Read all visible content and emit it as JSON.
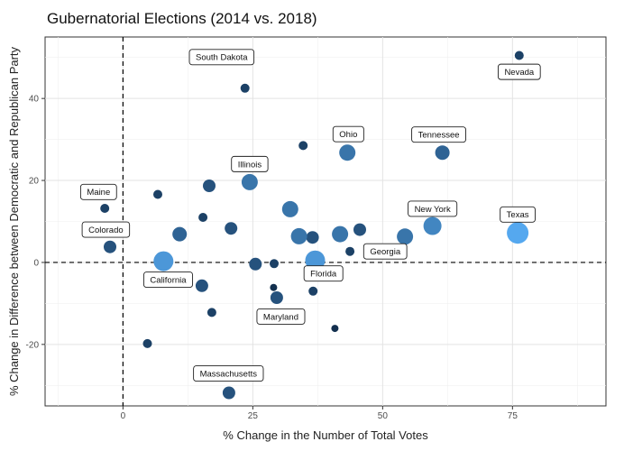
{
  "chart_data": {
    "type": "scatter",
    "title": "Gubernatorial Elections (2014 vs. 2018)",
    "xlabel": "% Change in the Number of Total Votes",
    "ylabel": "% Change in Difference between Democratic and Republican Party",
    "xlim": [
      -15,
      93
    ],
    "ylim": [
      -35,
      55
    ],
    "xticks": [
      0,
      25,
      50,
      75
    ],
    "yticks": [
      -20,
      0,
      20,
      40
    ],
    "grid": true,
    "reference_lines": {
      "x": 0,
      "y": 0,
      "style": "dashed"
    },
    "size_encoding": "larger, lighter points indicate larger states",
    "color_dark": "#13304f",
    "color_light": "#55a8ef",
    "points": [
      {
        "x": 76.3,
        "y": 50.5,
        "size": 1,
        "label": "Nevada"
      },
      {
        "x": 23.5,
        "y": 42.5,
        "size": 1,
        "label": "South Dakota"
      },
      {
        "x": 34.7,
        "y": 28.5,
        "size": 1,
        "label": null
      },
      {
        "x": 43.2,
        "y": 26.8,
        "size": 4,
        "label": "Ohio"
      },
      {
        "x": 61.5,
        "y": 26.8,
        "size": 3,
        "label": "Tennessee"
      },
      {
        "x": 24.4,
        "y": 19.6,
        "size": 4,
        "label": "Illinois"
      },
      {
        "x": -3.5,
        "y": 13.2,
        "size": 1,
        "label": "Maine"
      },
      {
        "x": 6.7,
        "y": 16.6,
        "size": 1,
        "label": null
      },
      {
        "x": 16.6,
        "y": 18.7,
        "size": 2,
        "label": null
      },
      {
        "x": 32.2,
        "y": 13.0,
        "size": 4,
        "label": null
      },
      {
        "x": 15.4,
        "y": 11.0,
        "size": 1,
        "label": null
      },
      {
        "x": 59.6,
        "y": 8.9,
        "size": 5,
        "label": "New York"
      },
      {
        "x": 76.0,
        "y": 7.2,
        "size": 7,
        "label": "Texas"
      },
      {
        "x": 10.9,
        "y": 6.9,
        "size": 3,
        "label": null
      },
      {
        "x": 20.8,
        "y": 8.3,
        "size": 2,
        "label": null
      },
      {
        "x": 33.9,
        "y": 6.4,
        "size": 4,
        "label": null
      },
      {
        "x": 36.5,
        "y": 6.1,
        "size": 2,
        "label": null
      },
      {
        "x": 41.8,
        "y": 6.9,
        "size": 4,
        "label": null
      },
      {
        "x": 45.6,
        "y": 8.0,
        "size": 2,
        "label": null
      },
      {
        "x": 54.3,
        "y": 6.3,
        "size": 4,
        "label": null
      },
      {
        "x": -2.5,
        "y": 3.8,
        "size": 2,
        "label": "Colorado"
      },
      {
        "x": 43.7,
        "y": 2.7,
        "size": 1,
        "label": "Georgia"
      },
      {
        "x": 7.8,
        "y": 0.3,
        "size": 6,
        "label": "California"
      },
      {
        "x": 37.0,
        "y": 0.5,
        "size": 6,
        "label": "Florida"
      },
      {
        "x": 25.5,
        "y": -0.4,
        "size": 2,
        "label": null
      },
      {
        "x": 29.1,
        "y": -0.3,
        "size": 1,
        "label": null
      },
      {
        "x": 15.2,
        "y": -5.7,
        "size": 2,
        "label": null
      },
      {
        "x": 29.0,
        "y": -6.1,
        "size": 0,
        "label": null
      },
      {
        "x": 29.6,
        "y": -8.6,
        "size": 2,
        "label": "Maryland"
      },
      {
        "x": 36.6,
        "y": -7.0,
        "size": 1,
        "label": null
      },
      {
        "x": 17.1,
        "y": -12.2,
        "size": 1,
        "label": null
      },
      {
        "x": 40.8,
        "y": -16.1,
        "size": 0,
        "label": null
      },
      {
        "x": 4.7,
        "y": -19.8,
        "size": 1,
        "label": null
      },
      {
        "x": 20.4,
        "y": -31.8,
        "size": 2,
        "label": "Massachusetts"
      }
    ],
    "label_offsets": {
      "Nevada": [
        0,
        -4
      ],
      "South Dakota": [
        -4.5,
        7.6
      ],
      "Ohio": [
        0.2,
        4.5
      ],
      "Tennessee": [
        -0.7,
        4.4
      ],
      "Illinois": [
        0,
        4.4
      ],
      "Maine": [
        -1.2,
        4.0
      ],
      "Colorado": [
        -0.8,
        4.2
      ],
      "New York": [
        0,
        4.2
      ],
      "Texas": [
        0,
        4.5
      ],
      "California": [
        0.9,
        -4.5
      ],
      "Florida": [
        1.6,
        -3.2
      ],
      "Georgia": [
        6.8,
        0
      ],
      "Maryland": [
        0.8,
        -4.6
      ],
      "Massachusetts": [
        -0.1,
        4.7
      ]
    }
  }
}
